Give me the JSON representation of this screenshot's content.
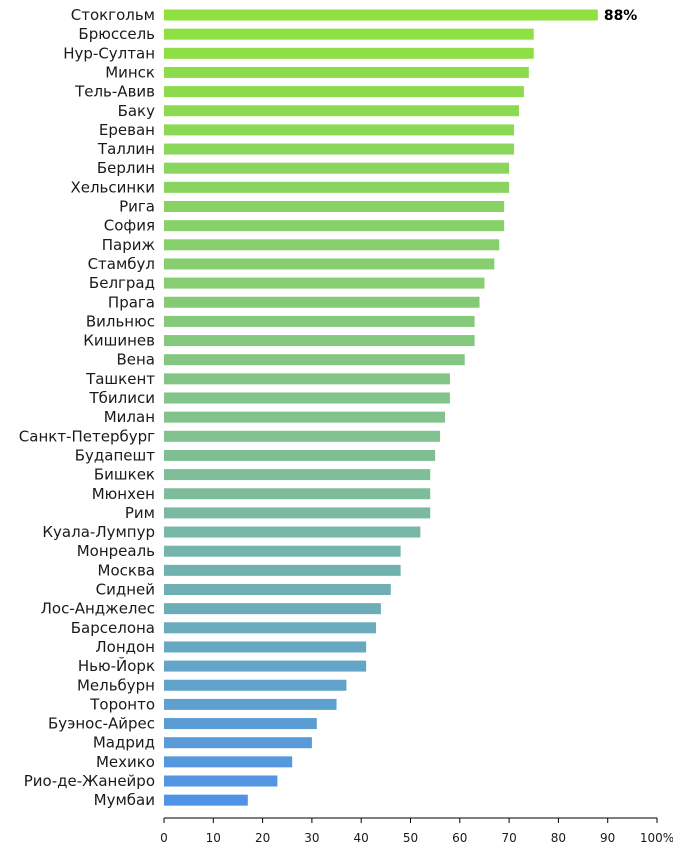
{
  "chart_data": {
    "type": "bar",
    "orientation": "horizontal",
    "title": "",
    "xlabel": "",
    "ylabel": "",
    "xlim": [
      0,
      100
    ],
    "x_ticks": [
      "0",
      "10",
      "20",
      "30",
      "40",
      "50",
      "60",
      "70",
      "80",
      "90",
      "100%"
    ],
    "grid": false,
    "categories": [
      "Стокгольм",
      "Брюссель",
      "Нур-Султан",
      "Минск",
      "Тель-Авив",
      "Баку",
      "Ереван",
      "Таллин",
      "Берлин",
      "Хельсинки",
      "Рига",
      "София",
      "Париж",
      "Стамбул",
      "Белград",
      "Прага",
      "Вильнюс",
      "Кишинев",
      "Вена",
      "Ташкент",
      "Тбилиси",
      "Милан",
      "Санкт-Петербург",
      "Будапешт",
      "Бишкек",
      "Мюнхен",
      "Рим",
      "Куала-Лумпур",
      "Монреаль",
      "Москва",
      "Сидней",
      "Лос-Анджелес",
      "Барселона",
      "Лондон",
      "Нью-Йорк",
      "Мельбурн",
      "Торонто",
      "Буэнос-Айрес",
      "Мадрид",
      "Мехико",
      "Рио-де-Жанейро",
      "Мумбаи"
    ],
    "values": [
      88,
      75,
      75,
      74,
      73,
      72,
      71,
      71,
      70,
      70,
      69,
      69,
      68,
      67,
      65,
      64,
      63,
      63,
      61,
      58,
      58,
      57,
      56,
      55,
      54,
      54,
      54,
      52,
      48,
      48,
      46,
      44,
      43,
      41,
      41,
      37,
      35,
      31,
      30,
      26,
      23,
      17
    ],
    "data_labels": [
      {
        "index": 0,
        "text": "88%"
      }
    ],
    "colors": {
      "top": "#8fe13f",
      "mid": "#7fbd9a",
      "bottom": "#4f93e6"
    }
  }
}
